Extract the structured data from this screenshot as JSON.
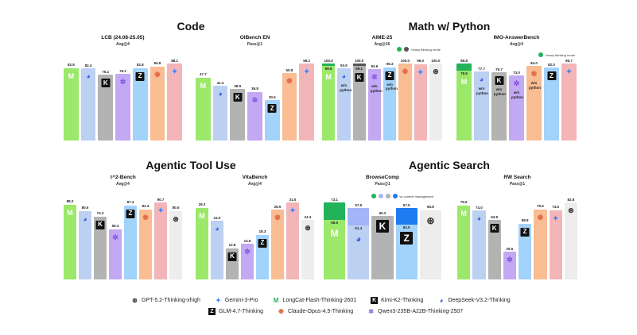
{
  "sections": {
    "code": "Code",
    "math": "Math w/ Python",
    "tool": "Agentic Tool Use",
    "search": "Agentic Search"
  },
  "models": {
    "longcat": {
      "name": "LongCat-Flash-Thinking-2601",
      "color": "#9be86a",
      "icon": "longcat-icon"
    },
    "deepseek": {
      "name": "DeepSeek-V3.2-Thinking",
      "color": "#bcd0f2",
      "icon": "deepseek-whale-icon"
    },
    "kimi": {
      "name": "Kimi-K2-Thinking",
      "color": "#b3b3b3",
      "icon": "kimi-k-icon"
    },
    "qwen": {
      "name": "Qwen3-235B-A22B-Thinking-2507",
      "color": "#c3a8f3",
      "icon": "qwen-icon"
    },
    "glm": {
      "name": "GLM-4.7-Thinking",
      "color": "#a2d3fb",
      "icon": "glm-z-icon"
    },
    "claude": {
      "name": "Claude-Opus-4.5-Thinking",
      "color": "#f9bc93",
      "icon": "claude-starburst-icon"
    },
    "gemini": {
      "name": "Gemini-3-Pro",
      "color": "#f3b5b8",
      "icon": "gemini-sparkle-icon"
    },
    "gpt": {
      "name": "GPT-5.2-Thinking-xhigh",
      "color": "#ededed",
      "icon": "openai-icon"
    }
  },
  "legend_order": [
    [
      "gpt",
      "gemini",
      "longcat",
      "kimi",
      "deepseek"
    ],
    [
      "glm",
      "claude",
      "qwen"
    ]
  ],
  "mini_legends": {
    "heavy": "heavy thinking mode",
    "context": "w/ context management"
  },
  "note_text": "w/o python",
  "chart_data": [
    {
      "type": "bar",
      "section": "code",
      "title": "LCB (24.08-25.05)",
      "subtitle": "Avg@4",
      "categories": [
        "longcat",
        "deepseek",
        "kimi",
        "qwen",
        "glm",
        "claude",
        "gemini"
      ],
      "values": [
        82.8,
        82.4,
        75.1,
        76.2,
        82.8,
        84.8,
        88.1
      ]
    },
    {
      "type": "bar",
      "section": "code",
      "title": "OIBench EN",
      "subtitle": "Pass@1",
      "categories": [
        "longcat",
        "deepseek",
        "kimi",
        "qwen",
        "glm",
        "claude",
        "gemini"
      ],
      "values": [
        47.7,
        41.3,
        38.9,
        36.8,
        30.5,
        50.8,
        58.2
      ]
    },
    {
      "type": "bar",
      "section": "math",
      "title": "AIME-25",
      "subtitle": "Avg@16",
      "categories": [
        "longcat",
        "deepseek",
        "kimi",
        "qwen",
        "glm",
        "claude",
        "gemini",
        "gpt"
      ],
      "values": [
        99.6,
        93.5,
        99.1,
        92.6,
        95.3,
        100.0,
        99.0,
        100.0
      ],
      "heavy_values": [
        100.0,
        null,
        100.0,
        null,
        null,
        null,
        null,
        null
      ],
      "heavy_colors": [
        "#22b35a",
        null,
        "#555555",
        null,
        null,
        null,
        null,
        null
      ],
      "notes": [
        false,
        true,
        false,
        true,
        true,
        false,
        false,
        false
      ],
      "mini_legend": "heavy",
      "mini_legend_colors": [
        "#22b35a",
        "#555555"
      ]
    },
    {
      "type": "bar",
      "section": "math",
      "title": "IMO-AnswerBench",
      "subtitle": "Avg@4",
      "categories": [
        "longcat",
        "deepseek",
        "kimi",
        "qwen",
        "claude",
        "glm",
        "gemini"
      ],
      "values": [
        78.6,
        77.7,
        76.7,
        73.0,
        84.0,
        82.0,
        86.7
      ],
      "heavy_values": [
        86.8,
        null,
        null,
        null,
        null,
        null,
        null
      ],
      "heavy_colors": [
        "#22b35a",
        null,
        null,
        null,
        null,
        null,
        null
      ],
      "notes": [
        false,
        true,
        true,
        true,
        true,
        false,
        false
      ],
      "mini_legend": "heavy",
      "mini_legend_colors": [
        "#22b35a"
      ]
    },
    {
      "type": "bar",
      "section": "tool",
      "title": "τ^2-Bench",
      "subtitle": "Avg@4",
      "categories": [
        "longcat",
        "deepseek",
        "kimi",
        "qwen",
        "glm",
        "claude",
        "gemini",
        "gpt"
      ],
      "values": [
        88.2,
        80.6,
        74.3,
        59.3,
        87.4,
        82.4,
        90.7,
        80.5
      ]
    },
    {
      "type": "bar",
      "section": "tool",
      "title": "VitaBench",
      "subtitle": "Avg@4",
      "categories": [
        "longcat",
        "deepseek",
        "kimi",
        "qwen",
        "glm",
        "claude",
        "gemini",
        "gpt"
      ],
      "values": [
        29.3,
        24.0,
        12.8,
        14.5,
        18.3,
        28.5,
        31.5,
        24.3
      ]
    },
    {
      "type": "bar",
      "section": "search",
      "title": "BrowseComp",
      "subtitle": "Pass@1",
      "categories": [
        "longcat",
        "deepseek",
        "kimi",
        "glm",
        "gpt"
      ],
      "values": [
        56.6,
        51.4,
        60.2,
        52.0,
        65.8
      ],
      "heavy_values": [
        73.1,
        67.6,
        null,
        67.5,
        null
      ],
      "heavy_colors": [
        "#22b35a",
        "#a3b5f7",
        null,
        "#1f7cf0",
        null
      ],
      "mini_legend": "context",
      "mini_legend_colors": [
        "#22b35a",
        "#a3b5f7",
        "#b3b3b3",
        "#1f7cf0"
      ]
    },
    {
      "type": "bar",
      "section": "search",
      "title": "RW Search",
      "subtitle": "Pass@1",
      "categories": [
        "longcat",
        "deepseek",
        "kimi",
        "qwen",
        "glm",
        "claude",
        "gemini",
        "gpt"
      ],
      "values": [
        79.5,
        74.0,
        63.8,
        29.5,
        59.9,
        75.5,
        74.5,
        82.8
      ]
    }
  ]
}
